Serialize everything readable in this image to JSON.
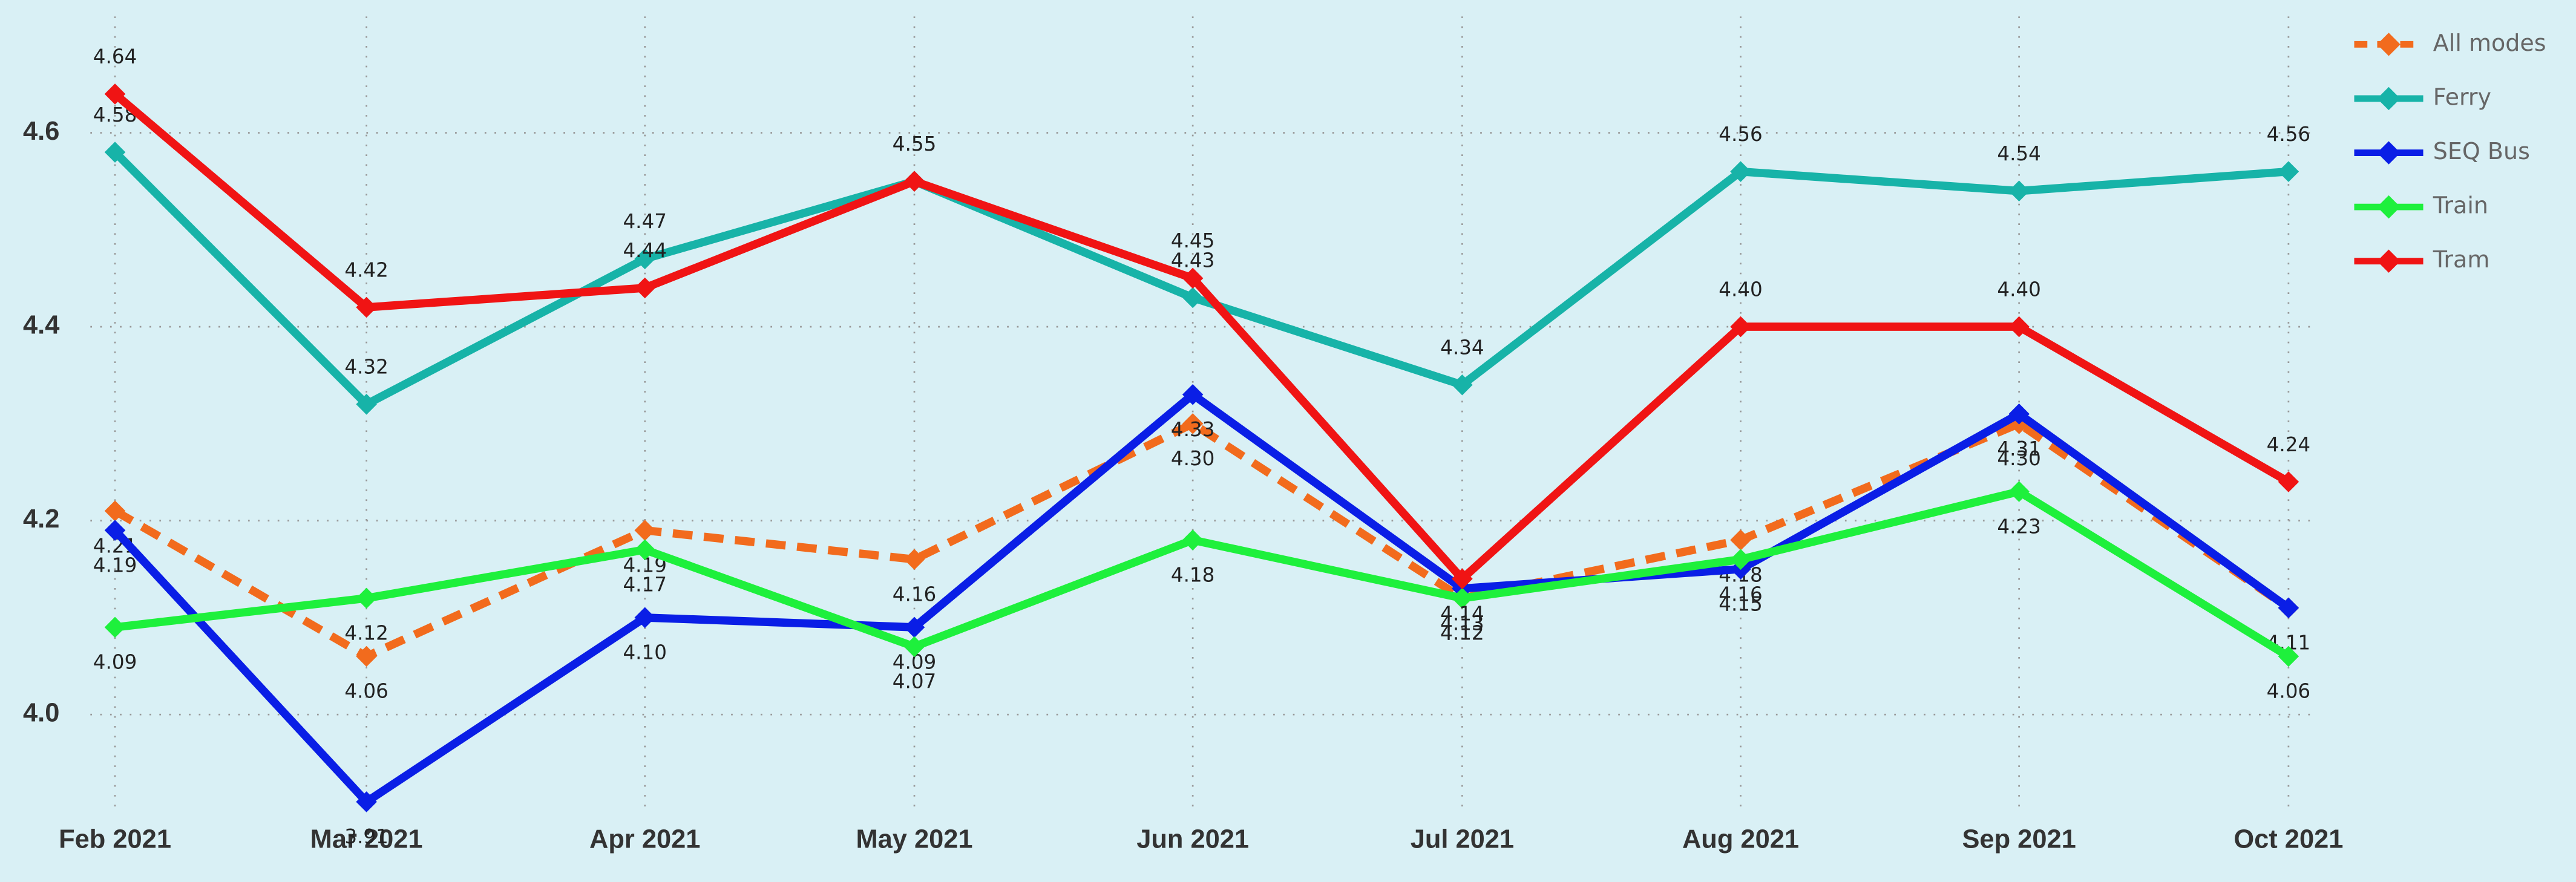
{
  "chart_data": {
    "type": "line",
    "categories": [
      "Feb 2021",
      "Mar 2021",
      "Apr 2021",
      "May 2021",
      "Jun 2021",
      "Jul 2021",
      "Aug 2021",
      "Sep 2021",
      "Oct 2021"
    ],
    "series": [
      {
        "name": "All modes",
        "color": "#f26b1d",
        "dashed": true,
        "values": [
          4.21,
          4.06,
          4.19,
          4.16,
          4.3,
          4.12,
          4.18,
          4.3,
          4.11
        ],
        "value_labels": [
          "4.21",
          "4.06",
          "4.19",
          "4.16",
          "4.30",
          "4.12",
          "4.18",
          "4.30",
          "4.11"
        ]
      },
      {
        "name": "Ferry",
        "color": "#17b3a8",
        "values": [
          4.58,
          4.32,
          4.47,
          4.55,
          4.43,
          4.34,
          4.56,
          4.54,
          4.56
        ],
        "value_labels": [
          "4.58",
          "4.32",
          "4.47",
          "4.55",
          "4.43",
          "4.34",
          "4.56",
          "4.54",
          "4.56"
        ]
      },
      {
        "name": "SEQ Bus",
        "color": "#0a1ee6",
        "values": [
          4.19,
          3.91,
          4.1,
          4.09,
          4.33,
          4.13,
          4.15,
          4.31,
          4.11
        ],
        "value_labels": [
          "4.19",
          "3.91",
          "4.10",
          "4.09",
          "4.33",
          "4.13",
          "4.15",
          "4.31",
          null
        ]
      },
      {
        "name": "Train",
        "color": "#1ef03c",
        "values": [
          4.09,
          4.12,
          4.17,
          4.07,
          4.18,
          4.12,
          4.16,
          4.23,
          4.06
        ],
        "value_labels": [
          "4.09",
          "4.12",
          "4.17",
          "4.07",
          "4.18",
          "4.12",
          "4.16",
          "4.23",
          "4.06"
        ]
      },
      {
        "name": "Tram",
        "color": "#f01414",
        "values": [
          4.64,
          4.42,
          4.44,
          4.55,
          4.45,
          4.14,
          4.4,
          4.4,
          4.24
        ],
        "value_labels": [
          "4.64",
          "4.42",
          "4.44",
          "4.55",
          "4.45",
          "4.14",
          "4.40",
          "4.40",
          "4.24"
        ]
      }
    ],
    "ylim": [
      3.89,
      4.72
    ],
    "yticks": [
      {
        "value": 4,
        "label": "4.0"
      },
      4.2,
      4.4,
      4.6
    ],
    "grid": true,
    "legend": "top-right"
  }
}
